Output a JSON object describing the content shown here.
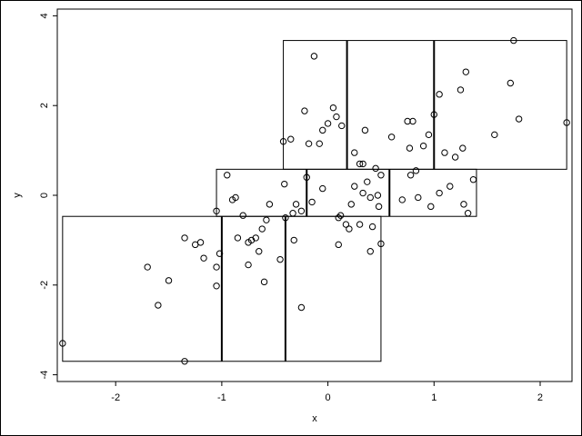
{
  "chart_data": {
    "type": "scatter",
    "title": "",
    "xlabel": "x",
    "ylabel": "y",
    "xlim": [
      -2.55,
      2.3
    ],
    "ylim": [
      -4.15,
      4.15
    ],
    "x_ticks": [
      -2,
      -1,
      0,
      1,
      2
    ],
    "y_ticks": [
      -4,
      -2,
      0,
      2,
      4
    ],
    "grid": false,
    "legend": "none",
    "point_color": "#000000",
    "points": [
      [
        -2.5,
        -3.3
      ],
      [
        -1.35,
        -3.7
      ],
      [
        -1.7,
        -1.6
      ],
      [
        -1.6,
        -2.45
      ],
      [
        -1.5,
        -1.9
      ],
      [
        -1.35,
        -0.95
      ],
      [
        -1.25,
        -1.1
      ],
      [
        -1.2,
        -1.05
      ],
      [
        -1.17,
        -1.4
      ],
      [
        -1.05,
        -2.02
      ],
      [
        -1.05,
        -1.6
      ],
      [
        -1.02,
        -1.3
      ],
      [
        -1.05,
        -0.35
      ],
      [
        -0.95,
        0.45
      ],
      [
        -0.9,
        -0.1
      ],
      [
        -0.87,
        -0.05
      ],
      [
        -0.85,
        -0.95
      ],
      [
        -0.8,
        -0.45
      ],
      [
        -0.75,
        -1.05
      ],
      [
        -0.75,
        -1.55
      ],
      [
        -0.72,
        -1.0
      ],
      [
        -0.68,
        -0.95
      ],
      [
        -0.65,
        -1.25
      ],
      [
        -0.62,
        -0.75
      ],
      [
        -0.6,
        -1.93
      ],
      [
        -0.58,
        -0.55
      ],
      [
        -0.55,
        -0.2
      ],
      [
        -0.45,
        -1.43
      ],
      [
        -0.42,
        1.2
      ],
      [
        -0.41,
        0.25
      ],
      [
        -0.4,
        -0.5
      ],
      [
        -0.35,
        1.25
      ],
      [
        -0.33,
        -0.4
      ],
      [
        -0.32,
        -1.0
      ],
      [
        -0.3,
        -0.2
      ],
      [
        -0.25,
        -0.35
      ],
      [
        -0.25,
        -2.5
      ],
      [
        -0.22,
        1.88
      ],
      [
        -0.2,
        0.4
      ],
      [
        -0.18,
        1.15
      ],
      [
        -0.15,
        -0.15
      ],
      [
        -0.13,
        3.1
      ],
      [
        -0.08,
        1.15
      ],
      [
        -0.05,
        1.45
      ],
      [
        -0.05,
        0.15
      ],
      [
        0.0,
        1.6
      ],
      [
        0.05,
        1.95
      ],
      [
        0.08,
        1.75
      ],
      [
        0.1,
        -0.5
      ],
      [
        0.1,
        -1.1
      ],
      [
        0.12,
        -0.45
      ],
      [
        0.13,
        1.55
      ],
      [
        0.17,
        -0.65
      ],
      [
        0.2,
        -0.75
      ],
      [
        0.22,
        -0.2
      ],
      [
        0.25,
        0.95
      ],
      [
        0.25,
        0.2
      ],
      [
        0.3,
        -0.65
      ],
      [
        0.3,
        0.7
      ],
      [
        0.33,
        0.05
      ],
      [
        0.33,
        0.7
      ],
      [
        0.35,
        1.45
      ],
      [
        0.37,
        0.3
      ],
      [
        0.4,
        -0.05
      ],
      [
        0.4,
        -1.25
      ],
      [
        0.42,
        -0.7
      ],
      [
        0.45,
        0.6
      ],
      [
        0.47,
        0.0
      ],
      [
        0.48,
        -0.25
      ],
      [
        0.5,
        -1.08
      ],
      [
        0.5,
        0.45
      ],
      [
        0.6,
        1.3
      ],
      [
        0.7,
        -0.1
      ],
      [
        0.75,
        1.65
      ],
      [
        0.77,
        1.05
      ],
      [
        0.78,
        0.45
      ],
      [
        0.8,
        1.65
      ],
      [
        0.83,
        0.55
      ],
      [
        0.85,
        -0.05
      ],
      [
        0.9,
        1.1
      ],
      [
        0.95,
        1.35
      ],
      [
        0.97,
        -0.25
      ],
      [
        1.0,
        1.8
      ],
      [
        1.05,
        2.25
      ],
      [
        1.05,
        0.05
      ],
      [
        1.1,
        0.95
      ],
      [
        1.15,
        0.2
      ],
      [
        1.2,
        0.85
      ],
      [
        1.25,
        2.35
      ],
      [
        1.27,
        1.05
      ],
      [
        1.28,
        -0.2
      ],
      [
        1.3,
        2.75
      ],
      [
        1.32,
        -0.4
      ],
      [
        1.37,
        0.35
      ],
      [
        1.57,
        1.35
      ],
      [
        1.72,
        2.5
      ],
      [
        1.75,
        3.45
      ],
      [
        1.8,
        1.7
      ],
      [
        2.25,
        1.62
      ]
    ],
    "bands": [
      {
        "ymin": 0.58,
        "ymax": 3.45,
        "xmin": -0.42,
        "xmax": 2.25,
        "dividers": [
          0.18,
          1.0
        ]
      },
      {
        "ymin": -0.47,
        "ymax": 0.58,
        "xmin": -1.05,
        "xmax": 1.4,
        "dividers": [
          -0.2,
          0.58
        ]
      },
      {
        "ymin": -3.7,
        "ymax": -0.47,
        "xmin": -2.5,
        "xmax": 0.5,
        "dividers": [
          -1.0,
          -0.4
        ]
      }
    ]
  }
}
